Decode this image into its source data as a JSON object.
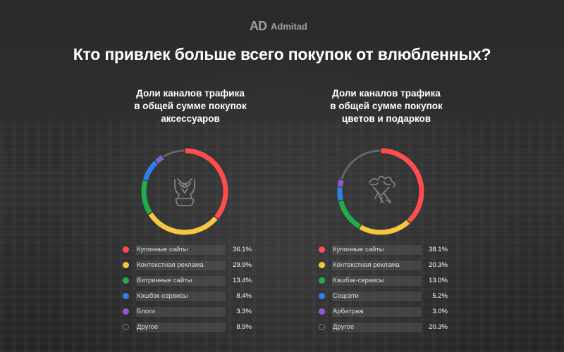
{
  "brand": {
    "mark": "AD",
    "name": "Admitad"
  },
  "title": "Кто привлек больше всего покупок от влюбленных?",
  "colors": {
    "red": "#ff4d4f",
    "yellow": "#f6c744",
    "green": "#1fae4b",
    "blue": "#2f80ed",
    "purple": "#8e5bd6",
    "other": "#666666"
  },
  "chart_data": [
    {
      "type": "pie",
      "variant": "donut",
      "title": "Доли каналов трафика\nв общей сумме покупок\nаксессуаров",
      "center_icon": "necklace-icon",
      "categories": [
        "Купонные сайты",
        "Контекстная реклама",
        "Витринные сайты",
        "Кэшбэк-сервисы",
        "Блоги",
        "Другое"
      ],
      "values": [
        36.1,
        29.9,
        13.4,
        8.4,
        3.3,
        8.9
      ],
      "value_labels": [
        "36.1%",
        "29.9%",
        "13.4%",
        "8.4%",
        "3.3%",
        "8.9%"
      ],
      "colors": [
        "#ff4d4f",
        "#f6c744",
        "#1fae4b",
        "#2f80ed",
        "#8e5bd6",
        "#666666"
      ],
      "legend": "bottom"
    },
    {
      "type": "pie",
      "variant": "donut",
      "title": "Доли каналов трафика\nв общей сумме покупок\nцветов и подарков",
      "center_icon": "flower-bouquet-icon",
      "categories": [
        "Купонные сайты",
        "Контекстная реклама",
        "Кэшбэк-сервисы",
        "Соцсети",
        "Арбитраж",
        "Другое"
      ],
      "values": [
        38.1,
        20.3,
        13.0,
        5.2,
        3.0,
        20.3
      ],
      "value_labels": [
        "38.1%",
        "20.3%",
        "13.0%",
        "5.2%",
        "3.0%",
        "20.3%"
      ],
      "colors": [
        "#ff4d4f",
        "#f6c744",
        "#1fae4b",
        "#2f80ed",
        "#8e5bd6",
        "#666666"
      ],
      "legend": "bottom"
    }
  ]
}
